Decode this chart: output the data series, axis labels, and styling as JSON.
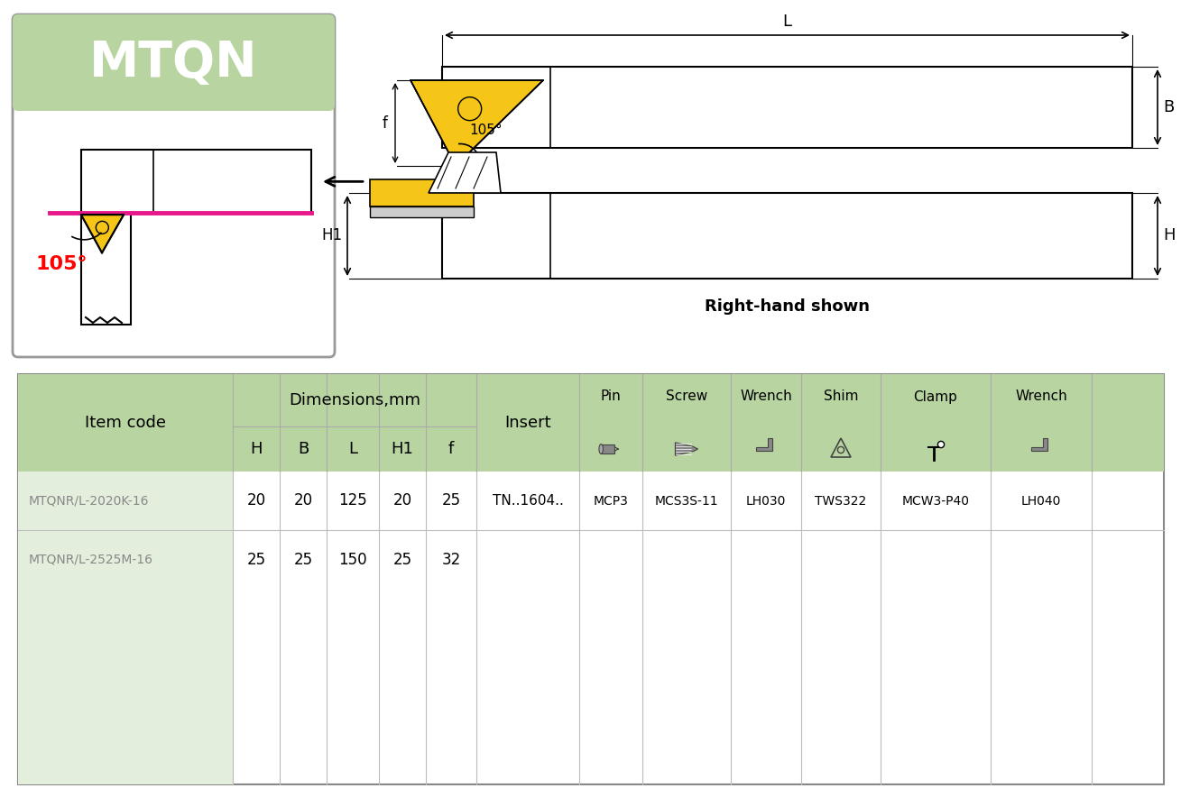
{
  "bg_color": "#ffffff",
  "green_light": "#b8d4a0",
  "green_header_dark": "#9aba85",
  "green_box_bg": "#e4eedd",
  "mtqn_title": "MTQN",
  "angle_label": "105°",
  "right_hand_label": "Right-hand shown",
  "dim_header": "Dimensions,mm",
  "item_col_header": "Item code",
  "rows": [
    {
      "item": "MTQNR/L-2020K-16",
      "H": "20",
      "B": "20",
      "L": "125",
      "H1": "20",
      "f": "25",
      "insert": "TN..1604..",
      "pin": "MCP3",
      "screw": "MCS3S-11",
      "wrench1": "LH030",
      "shim": "TWS322",
      "clamp": "MCW3-P40",
      "wrench2": "LH040"
    },
    {
      "item": "MTQNR/L-2525M-16",
      "H": "25",
      "B": "25",
      "L": "150",
      "H1": "25",
      "f": "32",
      "insert": "",
      "pin": "",
      "screw": "",
      "wrench1": "",
      "shim": "",
      "clamp": "",
      "wrench2": ""
    }
  ],
  "yellow_color": "#f5c518",
  "pink_color": "#e8178a",
  "text_gray": "#888888",
  "line_color": "#333333"
}
